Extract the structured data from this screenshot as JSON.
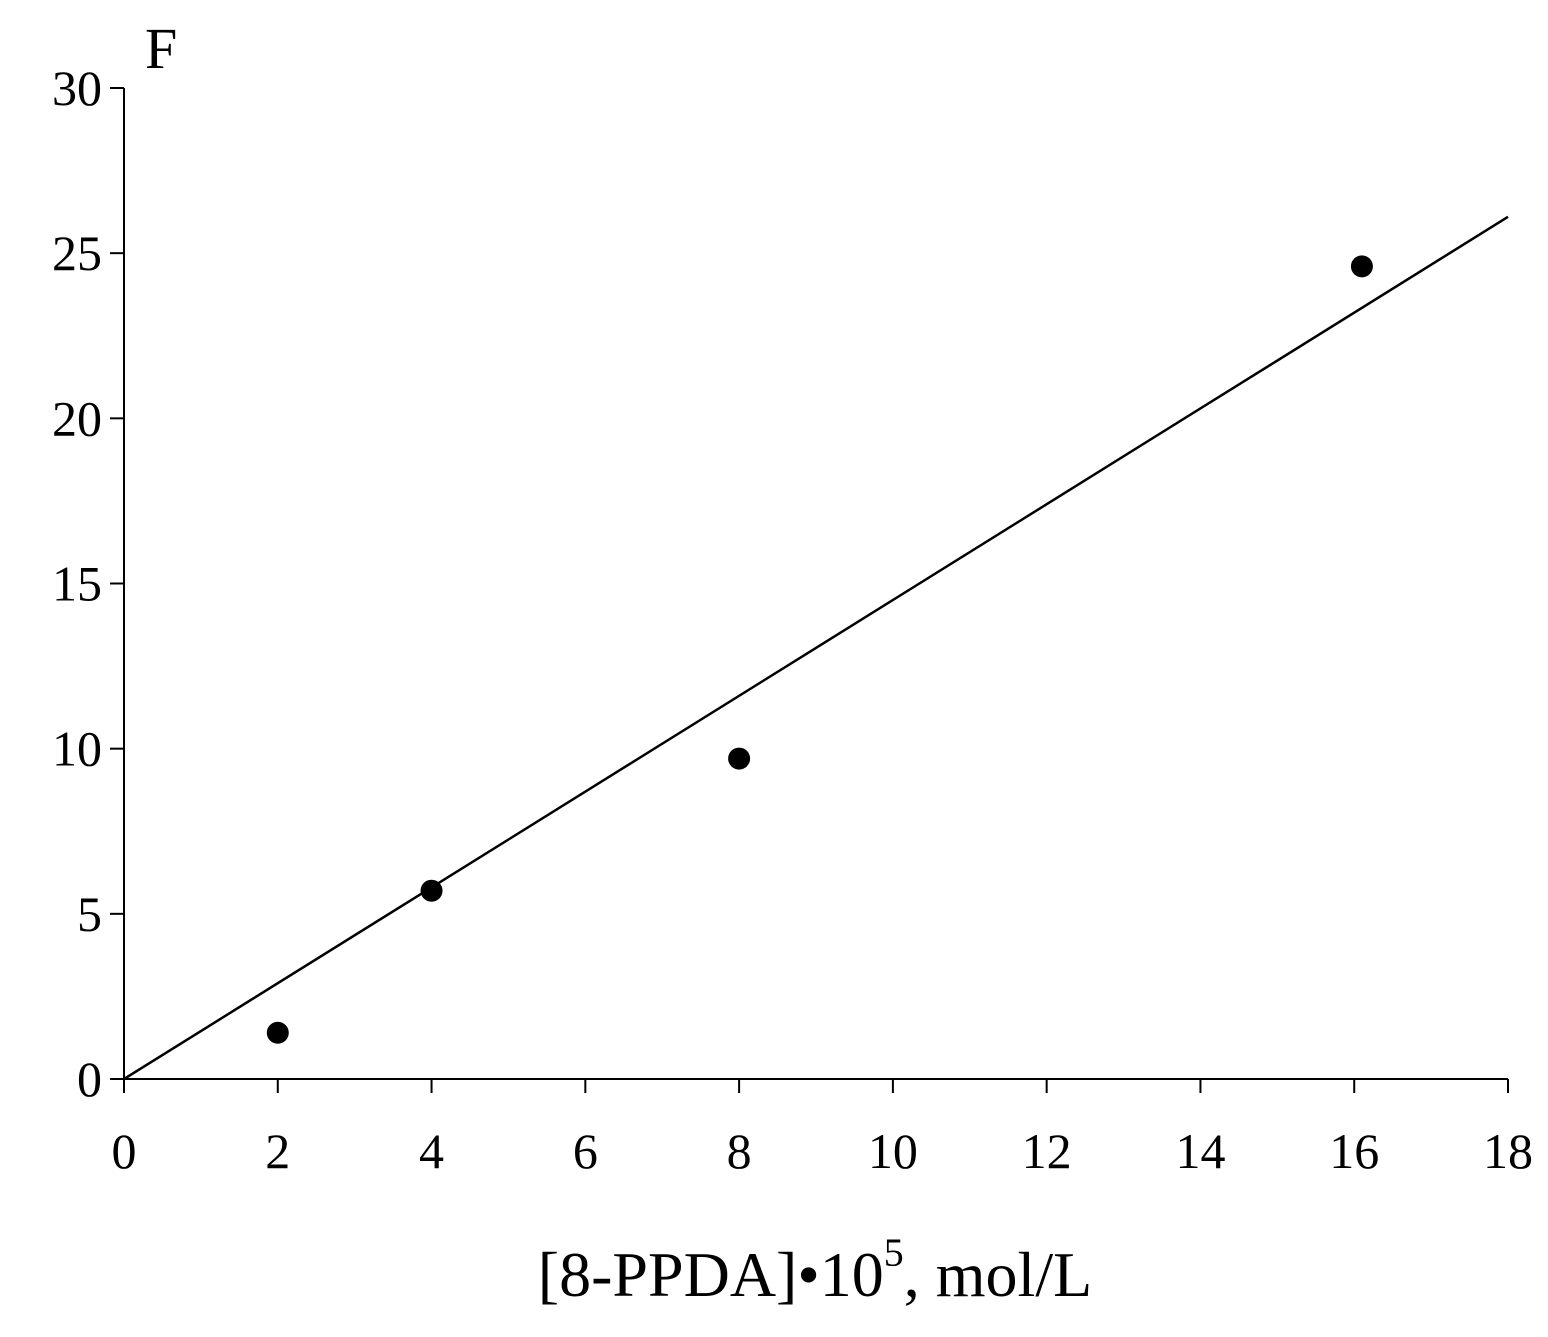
{
  "chart_data": {
    "type": "scatter",
    "title": "",
    "ylabel": "F",
    "xlabel": {
      "main": "[8-PPDA]•10",
      "superscript": "5",
      "suffix": ", mol/L"
    },
    "xlim": [
      0,
      18
    ],
    "ylim": [
      0,
      30
    ],
    "x_ticks": [
      0,
      2,
      4,
      6,
      8,
      10,
      12,
      14,
      16,
      18
    ],
    "y_ticks": [
      0,
      5,
      10,
      15,
      20,
      25,
      30
    ],
    "grid": false,
    "legend": "none",
    "points": [
      {
        "x": 2,
        "y": 1.4
      },
      {
        "x": 4,
        "y": 5.7
      },
      {
        "x": 8,
        "y": 9.7
      },
      {
        "x": 16.1,
        "y": 24.6
      }
    ],
    "trendline": {
      "type": "linear",
      "from": [
        0,
        0
      ],
      "to": [
        18,
        26.1
      ]
    },
    "colors": {
      "marker": "#000000",
      "line": "#000000",
      "axis": "#000000"
    }
  }
}
